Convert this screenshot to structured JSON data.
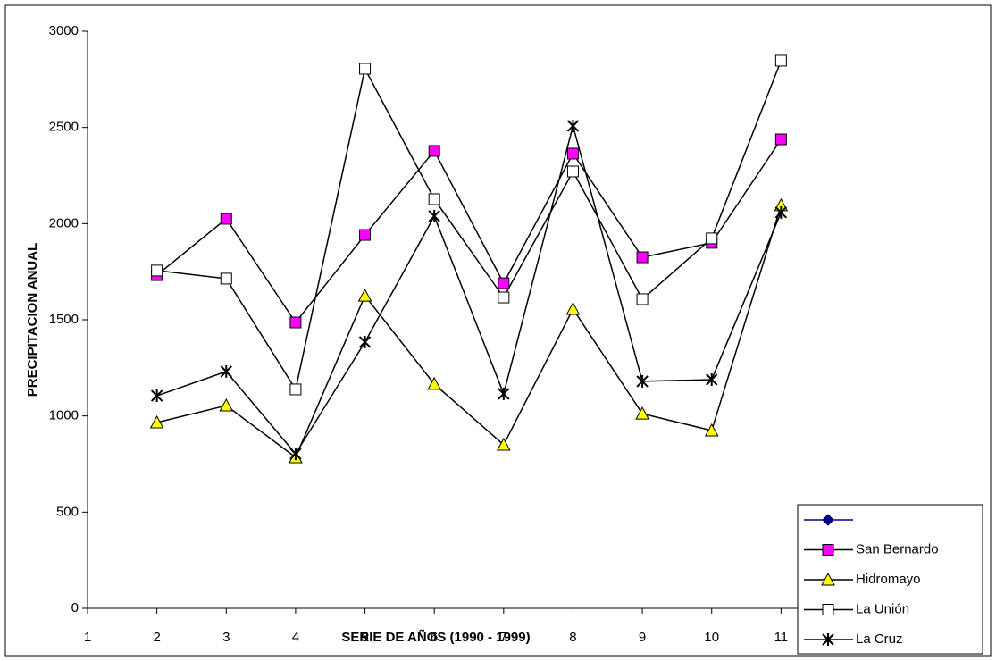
{
  "chart_data": {
    "type": "line",
    "x_axis_label": "SERIE DE AÑOS (1990 - 1999)",
    "y_axis_label": "PRECIPITACION ANUAL",
    "x": [
      2,
      3,
      4,
      5,
      6,
      7,
      8,
      9,
      10,
      11
    ],
    "xlim": [
      1,
      12
    ],
    "xticks": [
      1,
      2,
      3,
      4,
      5,
      6,
      7,
      8,
      9,
      10,
      11
    ],
    "ylim": [
      0,
      3000
    ],
    "yticks": [
      0,
      500,
      1000,
      1500,
      2000,
      2500,
      3000
    ],
    "legend": "bottom-right",
    "series": [
      {
        "name": null,
        "color": "#000080",
        "marker": "diamond",
        "marker_fill": "#000080",
        "values": [
          null,
          null,
          null,
          null,
          null,
          null,
          null,
          null,
          null,
          null
        ]
      },
      {
        "name": "San Bernardo",
        "color": "#000000",
        "marker": "square",
        "marker_fill": "#ff00ff",
        "values": [
          1732,
          2025,
          1486,
          1941,
          2378,
          1690,
          2364,
          1825,
          1900,
          2438
        ]
      },
      {
        "name": "Hidromayo",
        "color": "#000000",
        "marker": "triangle",
        "marker_fill": "#ffff00",
        "values": [
          966,
          1054,
          785,
          1625,
          1166,
          850,
          1556,
          1012,
          924,
          2095
        ]
      },
      {
        "name": "La Unión",
        "color": "#000000",
        "marker": "square",
        "marker_fill": "#ffffff",
        "values": [
          1756,
          1714,
          1138,
          2805,
          2127,
          1616,
          2271,
          1607,
          1923,
          2847
        ]
      },
      {
        "name": "La Cruz",
        "color": "#000000",
        "marker": "star",
        "marker_fill": "none",
        "values": [
          1105,
          1231,
          803,
          1384,
          2039,
          1115,
          2508,
          1180,
          1189,
          2058
        ]
      }
    ]
  }
}
